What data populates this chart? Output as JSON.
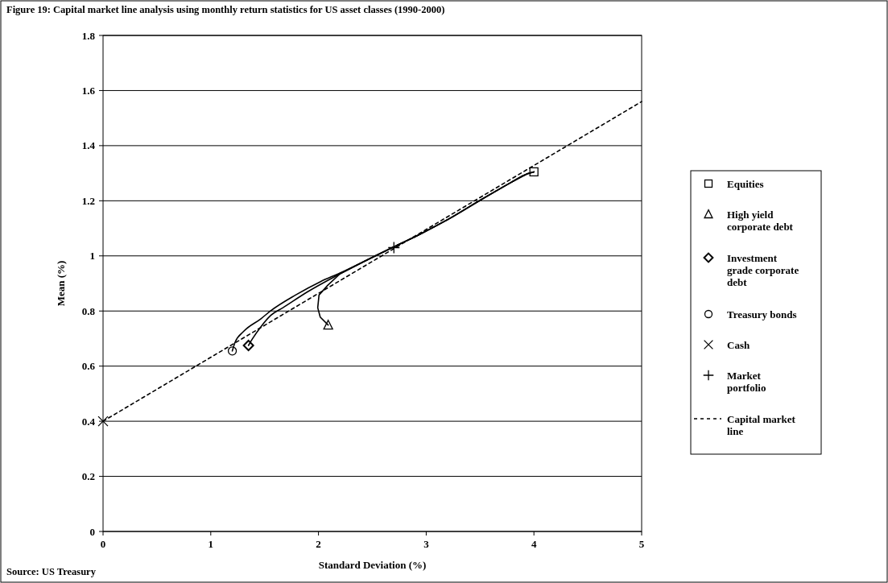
{
  "chart_data": {
    "type": "scatter",
    "title": "Figure 19: Capital market line analysis using monthly return statistics for US asset classes (1990-2000)",
    "xlabel": "Standard Deviation (%)",
    "ylabel": "Mean (%)",
    "xlim": [
      0,
      5
    ],
    "xticks": [
      0,
      1,
      2,
      3,
      4,
      5
    ],
    "ylim": [
      0,
      1.8
    ],
    "yticks": [
      0,
      0.2,
      0.4,
      0.6,
      0.8,
      1,
      1.2,
      1.4,
      1.6,
      1.8
    ],
    "grid": "y",
    "legend": "right",
    "annotations": [
      "Source: US Treasury"
    ],
    "series": [
      {
        "type": "line",
        "color": "#000000",
        "marker": "none",
        "line_style": "solid",
        "x": [
          1.2,
          1.225,
          1.305,
          1.466,
          1.557,
          1.787,
          2.016,
          2.2,
          2.475,
          2.7,
          2.93,
          3.21,
          3.51,
          3.78,
          3.94,
          4.0
        ],
        "values": [
          0.655,
          0.686,
          0.726,
          0.772,
          0.801,
          0.858,
          0.906,
          0.938,
          0.99,
          1.033,
          1.076,
          1.134,
          1.204,
          1.265,
          1.298,
          1.305
        ]
      },
      {
        "type": "line",
        "color": "#000000",
        "marker": "none",
        "line_style": "solid",
        "x": [
          1.35,
          1.385,
          1.466,
          1.557,
          1.67,
          1.9,
          2.2,
          2.475,
          2.7,
          2.93,
          3.21,
          3.51,
          3.78,
          3.94,
          4.0
        ],
        "values": [
          0.675,
          0.698,
          0.743,
          0.784,
          0.812,
          0.87,
          0.935,
          0.99,
          1.033,
          1.076,
          1.134,
          1.204,
          1.265,
          1.298,
          1.305
        ]
      },
      {
        "type": "line",
        "color": "#000000",
        "marker": "none",
        "line_style": "solid",
        "x": [
          2.09,
          2.016,
          1.993,
          2.005,
          2.085,
          2.2,
          2.475,
          2.7,
          2.93,
          3.21,
          3.51,
          3.78,
          3.94,
          4.0
        ],
        "values": [
          0.749,
          0.778,
          0.812,
          0.858,
          0.893,
          0.935,
          0.99,
          1.033,
          1.076,
          1.134,
          1.204,
          1.265,
          1.298,
          1.305
        ]
      },
      {
        "type": "scatter",
        "name": "Equities",
        "color": "#000000",
        "marker": "square",
        "x": [
          4.0
        ],
        "values": [
          1.305
        ]
      },
      {
        "type": "scatter",
        "name": "High yield corporate debt",
        "color": "#000000",
        "marker": "triangle",
        "x": [
          2.09
        ],
        "values": [
          0.749
        ]
      },
      {
        "type": "scatter",
        "name": "Investment grade corporate debt",
        "color": "#000000",
        "marker": "diamond",
        "x": [
          1.35
        ],
        "values": [
          0.675
        ]
      },
      {
        "type": "scatter",
        "name": "Treasury bonds",
        "color": "#000000",
        "marker": "circle",
        "x": [
          1.2
        ],
        "values": [
          0.655
        ]
      },
      {
        "type": "scatter",
        "name": "Cash",
        "color": "#000000",
        "marker": "x",
        "x": [
          0
        ],
        "values": [
          0.4
        ]
      },
      {
        "type": "scatter",
        "name": "Market portfolio",
        "color": "#000000",
        "marker": "cross",
        "x": [
          2.7
        ],
        "values": [
          1.03
        ]
      },
      {
        "type": "line",
        "name": "Capital market line",
        "color": "#000000",
        "marker": "none",
        "line_style": "dashed",
        "x": [
          0,
          5
        ],
        "values": [
          0.4,
          1.56
        ]
      }
    ]
  }
}
